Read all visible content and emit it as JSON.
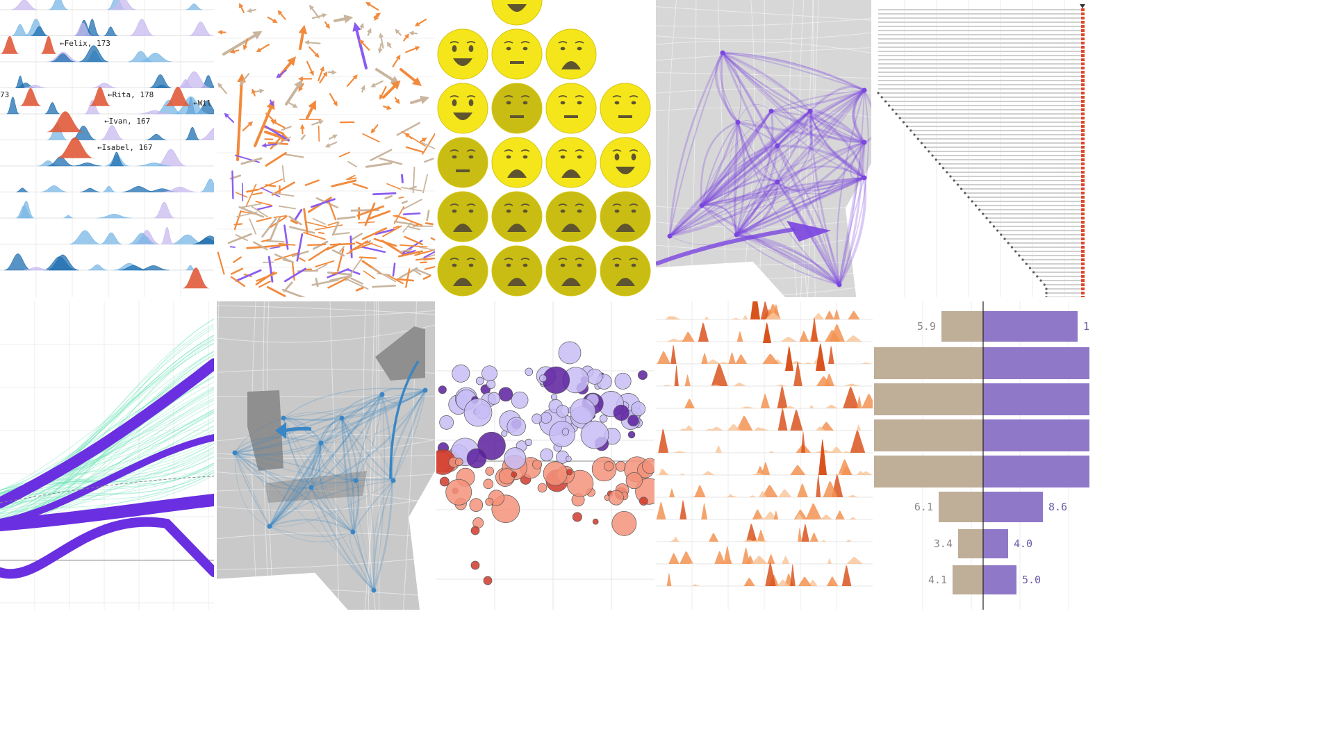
{
  "chart_data": [
    {
      "type": "area",
      "annotations": [
        {
          "row": 1,
          "text": "Felix, 173"
        },
        {
          "row": 3,
          "text": "73"
        },
        {
          "row": 3,
          "text": "Rita, 178"
        },
        {
          "row": 3,
          "text": "Wil"
        },
        {
          "row": 4,
          "text": "Ivan, 167"
        },
        {
          "row": 5,
          "text": "Isabel, 167"
        }
      ],
      "colors": {
        "light": "#7ab7e6",
        "dark": "#1f6fb0",
        "highlight": "#e05a3a",
        "lavender": "#c7b9ef"
      }
    },
    {
      "type": "scatter",
      "colors": {
        "orange": "#f28a3c",
        "tan": "#c9b59e",
        "purple": "#8a5cf0"
      }
    },
    {
      "type": "scatter",
      "colors": {
        "bright": "#f5e61c",
        "dim": "#c9bd14",
        "feature": "#5e5530"
      }
    },
    {
      "type": "line",
      "colors": {
        "flow": "#7a45e0",
        "land": "#d7d7d7"
      }
    },
    {
      "type": "bar",
      "colors": {
        "bar": "#cfcfcf",
        "dot": "#5a5a5a",
        "marker": "#e0462a"
      }
    },
    {
      "type": "line",
      "colors": {
        "thin": "#5de0b0",
        "thick": "#6a2fe0"
      }
    },
    {
      "type": "line",
      "colors": {
        "flow": "#3a86c4",
        "land": "#c9c9c9",
        "highlight": "#8f8f8f"
      }
    },
    {
      "type": "scatter",
      "colors": {
        "lavender": "#c8bdf6",
        "purple": "#5a1f9e",
        "salmon": "#f3927a",
        "red": "#d03a2a"
      }
    },
    {
      "type": "area",
      "colors": {
        "light": "#f9c79e",
        "mid": "#f39352",
        "dark": "#d9531e"
      }
    },
    {
      "type": "bar",
      "rows": [
        {
          "left": "5.9",
          "right": "1"
        },
        {
          "left": "",
          "right": ""
        },
        {
          "left": "",
          "right": ""
        },
        {
          "left": "",
          "right": ""
        },
        {
          "left": "",
          "right": ""
        },
        {
          "left": "6.1",
          "right": "8.6"
        },
        {
          "left": "3.4",
          "right": "4.0"
        },
        {
          "left": "4.1",
          "right": "5.0"
        }
      ],
      "colors": {
        "tan": "#bfae98",
        "purple": "#9078c8",
        "leftText": "#888888",
        "rightText": "#6b5aa8"
      }
    }
  ]
}
